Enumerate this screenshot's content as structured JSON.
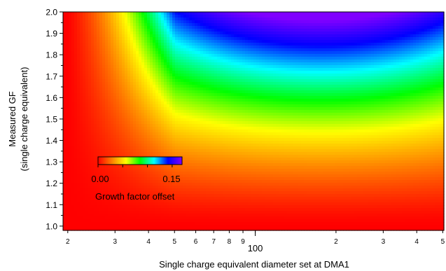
{
  "chart_data": {
    "type": "heatmap",
    "xlabel": "Single charge equivalent diameter set at DMA1",
    "ylabel_line1": "Measured GF",
    "ylabel_line2": "(single charge equivalent)",
    "x_scale": "log",
    "xlim": [
      19.2,
      505
    ],
    "ylim": [
      0.98,
      2.0
    ],
    "x_ticks": [
      {
        "value": 20,
        "label": "2"
      },
      {
        "value": 30,
        "label": "3"
      },
      {
        "value": 40,
        "label": "4"
      },
      {
        "value": 50,
        "label": "5"
      },
      {
        "value": 60,
        "label": "6"
      },
      {
        "value": 70,
        "label": "7"
      },
      {
        "value": 80,
        "label": "8"
      },
      {
        "value": 90,
        "label": "9"
      },
      {
        "value": 100,
        "label": "100"
      },
      {
        "value": 200,
        "label": "2"
      },
      {
        "value": 300,
        "label": "3"
      },
      {
        "value": 400,
        "label": "4"
      },
      {
        "value": 500,
        "label": "5"
      }
    ],
    "y_ticks": [
      1.0,
      1.1,
      1.2,
      1.3,
      1.4,
      1.5,
      1.6,
      1.7,
      1.8,
      1.9,
      2.0
    ],
    "y_tick_labels": [
      "1.0",
      "1.1",
      "1.2",
      "1.3",
      "1.4",
      "1.5",
      "1.6",
      "1.7",
      "1.8",
      "1.9",
      "2.0"
    ],
    "colorscale": {
      "label": "Growth factor offset",
      "min": 0.0,
      "max": 0.17,
      "tick_labels": [
        "0.00",
        "0.15"
      ],
      "stops": [
        "#ff0000",
        "#ff8000",
        "#ffff00",
        "#00ff00",
        "#00ffff",
        "#0000ff",
        "#8000ff"
      ]
    },
    "field_samples": [
      {
        "x": 20,
        "y": 1.0,
        "z": 0.0
      },
      {
        "x": 20,
        "y": 2.0,
        "z": 0.0
      },
      {
        "x": 40,
        "y": 1.3,
        "z": 0.02
      },
      {
        "x": 40,
        "y": 1.7,
        "z": 0.05
      },
      {
        "x": 100,
        "y": 1.25,
        "z": 0.04
      },
      {
        "x": 100,
        "y": 1.9,
        "z": 0.11
      },
      {
        "x": 200,
        "y": 1.0,
        "z": 0.01
      },
      {
        "x": 200,
        "y": 1.45,
        "z": 0.08
      },
      {
        "x": 200,
        "y": 2.0,
        "z": 0.17
      },
      {
        "x": 500,
        "y": 1.3,
        "z": 0.05
      },
      {
        "x": 500,
        "y": 2.0,
        "z": 0.12
      }
    ]
  }
}
